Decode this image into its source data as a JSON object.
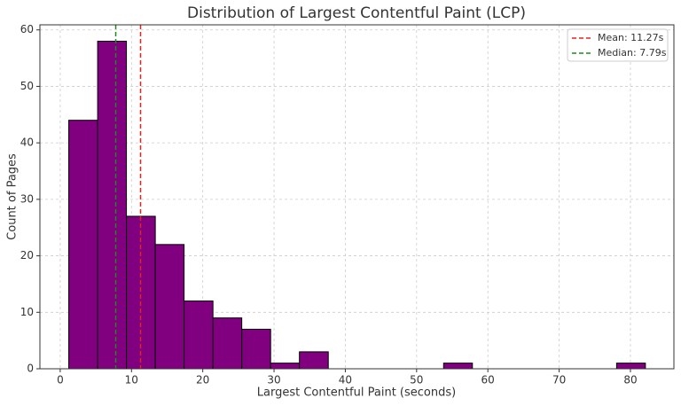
{
  "chart_data": {
    "type": "histogram",
    "title": "Distribution of Largest Contentful Paint (LCP)",
    "x_label": "Largest Contentful Paint (seconds)",
    "y_label": "Count of Pages",
    "bins": [
      1.2,
      5.25,
      9.29,
      13.34,
      17.38,
      21.43,
      25.47,
      29.52,
      33.56,
      37.61,
      41.65,
      45.7,
      49.74,
      53.79,
      57.83,
      61.88,
      65.92,
      69.97,
      74.01,
      78.06,
      82.1
    ],
    "counts": [
      44,
      58,
      27,
      22,
      12,
      9,
      7,
      1,
      3,
      0,
      0,
      0,
      0,
      1,
      0,
      0,
      0,
      0,
      0,
      1
    ],
    "color": "#800080",
    "edgecolor": "#000000",
    "reference_lines": [
      {
        "label": "Mean: 11.27s",
        "value": 11.27,
        "color": "#e8231d"
      },
      {
        "label": "Median: 7.79s",
        "value": 7.79,
        "color": "#1a8c1a"
      }
    ],
    "xlim": [
      -2.85,
      86.1
    ],
    "xticks": [
      0,
      10,
      20,
      30,
      40,
      50,
      60,
      70,
      80
    ],
    "ylim": [
      0,
      60.9
    ],
    "yticks": [
      0,
      10,
      20,
      30,
      40,
      50,
      60
    ],
    "grid": true,
    "legend": "upper right"
  }
}
